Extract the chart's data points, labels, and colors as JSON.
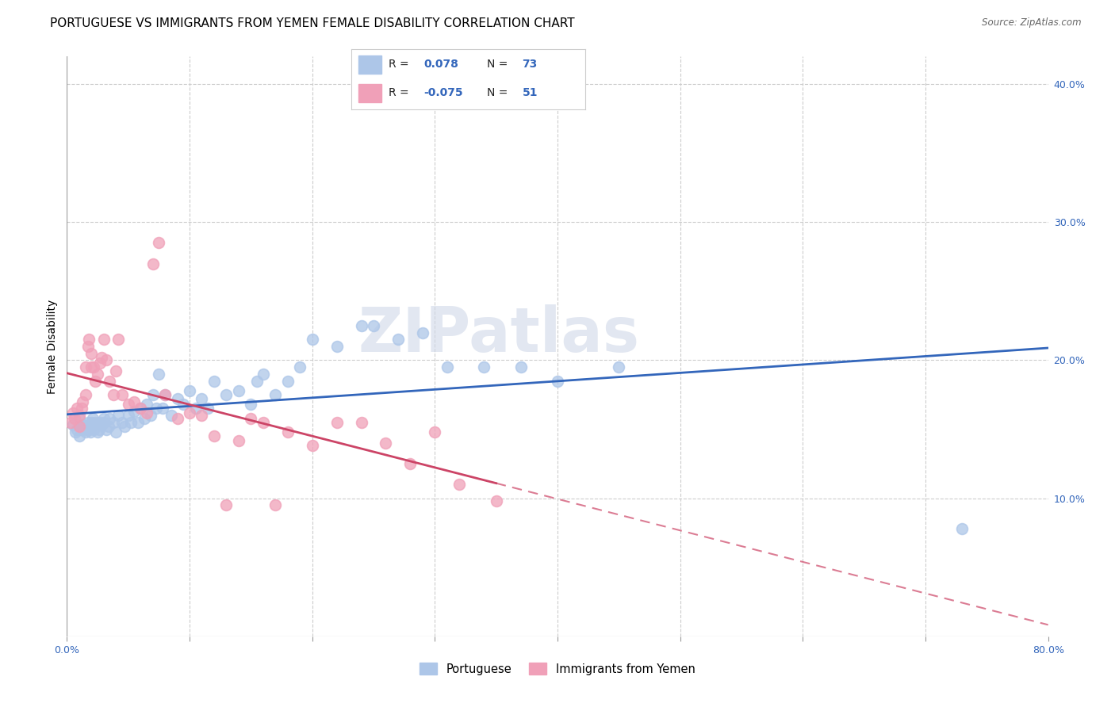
{
  "title": "PORTUGUESE VS IMMIGRANTS FROM YEMEN FEMALE DISABILITY CORRELATION CHART",
  "source": "Source: ZipAtlas.com",
  "ylabel": "Female Disability",
  "watermark": "ZIPatlas",
  "xlim": [
    0.0,
    0.8
  ],
  "ylim": [
    0.0,
    0.42
  ],
  "xtick_positions": [
    0.0,
    0.1,
    0.2,
    0.3,
    0.4,
    0.5,
    0.6,
    0.7,
    0.8
  ],
  "xticklabels": [
    "0.0%",
    "",
    "",
    "",
    "",
    "",
    "",
    "",
    "80.0%"
  ],
  "yticks_right": [
    0.1,
    0.2,
    0.3,
    0.4
  ],
  "ytick_right_labels": [
    "10.0%",
    "20.0%",
    "30.0%",
    "40.0%"
  ],
  "blue_R": 0.078,
  "blue_N": 73,
  "pink_R": -0.075,
  "pink_N": 51,
  "blue_color": "#adc6e8",
  "blue_edge_color": "#adc6e8",
  "blue_line_color": "#3366bb",
  "pink_color": "#f0a0b8",
  "pink_edge_color": "#f0a0b8",
  "pink_line_color": "#cc4466",
  "blue_points_x": [
    0.005,
    0.007,
    0.008,
    0.01,
    0.01,
    0.012,
    0.013,
    0.015,
    0.015,
    0.017,
    0.018,
    0.019,
    0.02,
    0.02,
    0.021,
    0.022,
    0.022,
    0.023,
    0.025,
    0.026,
    0.027,
    0.028,
    0.03,
    0.03,
    0.032,
    0.034,
    0.035,
    0.038,
    0.04,
    0.042,
    0.045,
    0.047,
    0.05,
    0.052,
    0.055,
    0.058,
    0.06,
    0.063,
    0.065,
    0.068,
    0.07,
    0.073,
    0.075,
    0.078,
    0.08,
    0.085,
    0.09,
    0.095,
    0.1,
    0.105,
    0.11,
    0.115,
    0.12,
    0.13,
    0.14,
    0.15,
    0.155,
    0.16,
    0.17,
    0.18,
    0.19,
    0.2,
    0.22,
    0.24,
    0.25,
    0.27,
    0.29,
    0.31,
    0.34,
    0.37,
    0.4,
    0.45,
    0.73
  ],
  "blue_points_y": [
    0.153,
    0.148,
    0.15,
    0.145,
    0.158,
    0.15,
    0.153,
    0.148,
    0.152,
    0.155,
    0.15,
    0.148,
    0.152,
    0.155,
    0.158,
    0.15,
    0.153,
    0.155,
    0.148,
    0.15,
    0.155,
    0.153,
    0.155,
    0.158,
    0.15,
    0.152,
    0.158,
    0.155,
    0.148,
    0.16,
    0.155,
    0.152,
    0.16,
    0.155,
    0.163,
    0.155,
    0.165,
    0.158,
    0.168,
    0.16,
    0.175,
    0.165,
    0.19,
    0.165,
    0.175,
    0.16,
    0.172,
    0.168,
    0.178,
    0.165,
    0.172,
    0.165,
    0.185,
    0.175,
    0.178,
    0.168,
    0.185,
    0.19,
    0.175,
    0.185,
    0.195,
    0.215,
    0.21,
    0.225,
    0.225,
    0.215,
    0.22,
    0.195,
    0.195,
    0.195,
    0.185,
    0.195,
    0.078
  ],
  "pink_points_x": [
    0.003,
    0.005,
    0.006,
    0.008,
    0.01,
    0.01,
    0.012,
    0.013,
    0.015,
    0.015,
    0.017,
    0.018,
    0.02,
    0.02,
    0.022,
    0.023,
    0.025,
    0.027,
    0.028,
    0.03,
    0.032,
    0.035,
    0.038,
    0.04,
    0.042,
    0.045,
    0.05,
    0.055,
    0.06,
    0.065,
    0.07,
    0.075,
    0.08,
    0.09,
    0.1,
    0.11,
    0.12,
    0.13,
    0.14,
    0.15,
    0.16,
    0.17,
    0.18,
    0.2,
    0.22,
    0.24,
    0.26,
    0.28,
    0.3,
    0.32,
    0.35
  ],
  "pink_points_y": [
    0.155,
    0.162,
    0.158,
    0.165,
    0.152,
    0.16,
    0.165,
    0.17,
    0.175,
    0.195,
    0.21,
    0.215,
    0.195,
    0.205,
    0.195,
    0.185,
    0.19,
    0.198,
    0.202,
    0.215,
    0.2,
    0.185,
    0.175,
    0.192,
    0.215,
    0.175,
    0.168,
    0.17,
    0.165,
    0.162,
    0.27,
    0.285,
    0.175,
    0.158,
    0.162,
    0.16,
    0.145,
    0.095,
    0.142,
    0.158,
    0.155,
    0.095,
    0.148,
    0.138,
    0.155,
    0.155,
    0.14,
    0.125,
    0.148,
    0.11,
    0.098
  ],
  "background_color": "#ffffff",
  "grid_color": "#cccccc",
  "title_fontsize": 11,
  "axis_label_fontsize": 10,
  "tick_fontsize": 9,
  "marker_size": 100
}
